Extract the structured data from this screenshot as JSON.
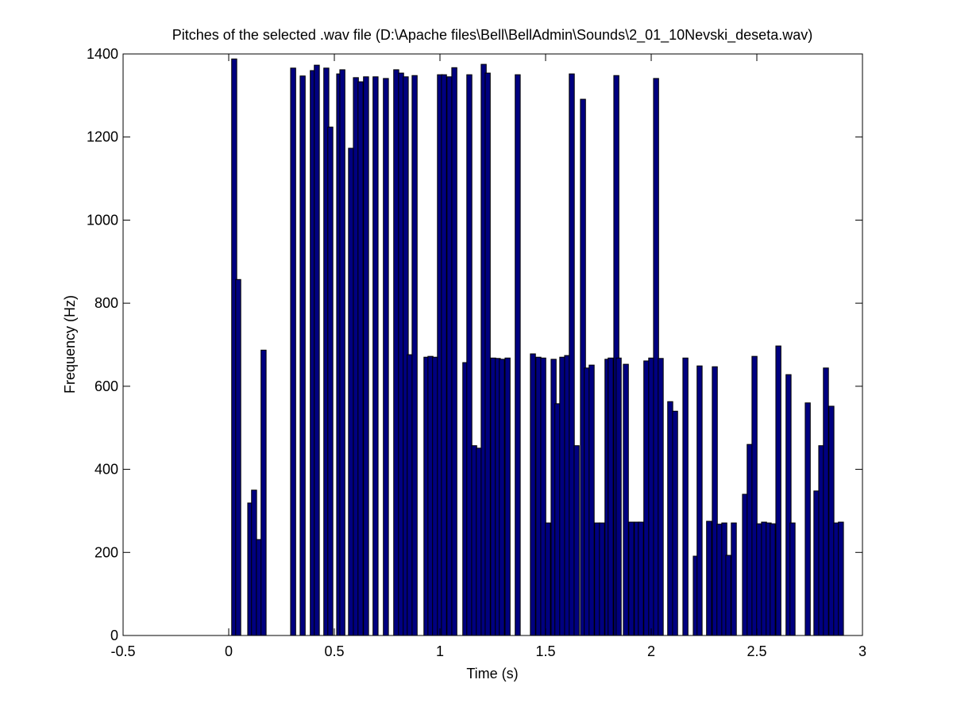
{
  "chart_data": {
    "type": "bar",
    "title": "Pitches of the selected .wav file (D:\\Apache files\\Bell\\BellAdmin\\Sounds\\2_01_10Nevski_deseta.wav)",
    "x_label": "Time (s)",
    "y_label": "Frequency (Hz)",
    "x": [
      0.026,
      0.045,
      0.102,
      0.12,
      0.143,
      0.165,
      0.305,
      0.35,
      0.398,
      0.417,
      0.462,
      0.481,
      0.523,
      0.538,
      0.579,
      0.602,
      0.624,
      0.65,
      0.695,
      0.744,
      0.793,
      0.816,
      0.838,
      0.857,
      0.88,
      0.936,
      0.955,
      0.977,
      1.0,
      1.019,
      1.045,
      1.068,
      1.12,
      1.139,
      1.162,
      1.184,
      1.207,
      1.226,
      1.252,
      1.274,
      1.293,
      1.32,
      1.368,
      1.44,
      1.466,
      1.489,
      1.511,
      1.538,
      1.556,
      1.579,
      1.602,
      1.624,
      1.647,
      1.677,
      1.695,
      1.718,
      1.744,
      1.767,
      1.793,
      1.808,
      1.835,
      1.846,
      1.88,
      1.906,
      1.932,
      1.951,
      1.977,
      2.0,
      2.023,
      2.045,
      2.09,
      2.113,
      2.162,
      2.211,
      2.229,
      2.274,
      2.301,
      2.323,
      2.346,
      2.365,
      2.391,
      2.444,
      2.466,
      2.489,
      2.511,
      2.534,
      2.556,
      2.575,
      2.602,
      2.65,
      2.669,
      2.741,
      2.782,
      2.805,
      2.827,
      2.853,
      2.876,
      2.898
    ],
    "values": [
      1388,
      857,
      319,
      350,
      231,
      687,
      1366,
      1347,
      1360,
      1373,
      1366,
      1224,
      1352,
      1362,
      1173,
      1343,
      1333,
      1345,
      1345,
      1341,
      1362,
      1354,
      1345,
      676,
      1348,
      670,
      672,
      670,
      1350,
      1350,
      1345,
      1367,
      657,
      1350,
      457,
      451,
      1375,
      1354,
      668,
      667,
      665,
      668,
      1350,
      678,
      670,
      668,
      271,
      665,
      558,
      670,
      674,
      1352,
      457,
      1291,
      644,
      651,
      271,
      271,
      665,
      668,
      1348,
      668,
      653,
      273,
      273,
      273,
      661,
      668,
      1341,
      667,
      563,
      540,
      668,
      191,
      649,
      275,
      647,
      268,
      271,
      193,
      271,
      340,
      460,
      672,
      269,
      273,
      271,
      269,
      697,
      628,
      271,
      560,
      348,
      457,
      644,
      552,
      271,
      273
    ],
    "color": "#000080",
    "xlim": [
      -0.5,
      3
    ],
    "xticks": [
      -0.5,
      0,
      0.5,
      1,
      1.5,
      2,
      2.5,
      3
    ],
    "ylim": [
      0,
      1400
    ],
    "yticks": [
      0,
      200,
      400,
      600,
      800,
      1000,
      1200,
      1400
    ]
  }
}
